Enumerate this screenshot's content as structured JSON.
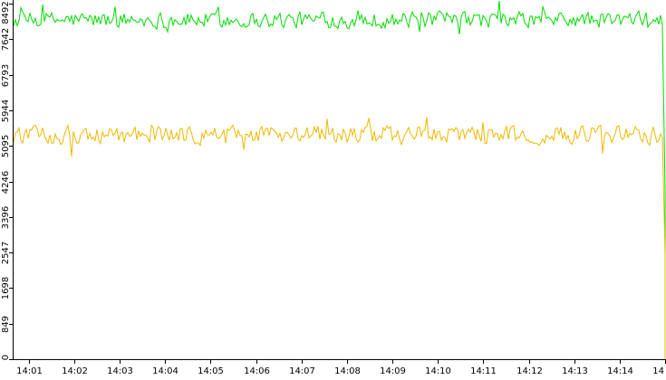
{
  "chart_data": {
    "type": "line",
    "title": "",
    "xlabel": "",
    "ylabel": "",
    "ylim": [
      0,
      8492
    ],
    "y_ticks": [
      0,
      849,
      1698,
      2547,
      3396,
      4246,
      5095,
      5944,
      6793,
      7642,
      8492
    ],
    "y_tick_labels": [
      "0",
      "849",
      "1698",
      "2547",
      "3396",
      "4246",
      "5095",
      "5944",
      "6793",
      "7642",
      "8492"
    ],
    "x_ticks": [
      "14:01",
      "14:02",
      "14:03",
      "14:04",
      "14:05",
      "14:06",
      "14:07",
      "14:08",
      "14:09",
      "14:10",
      "14:11",
      "14:12",
      "14:13",
      "14:14",
      "14"
    ],
    "x_start_label": "14:00:40",
    "x_end_label": "14:15:00",
    "grid": false,
    "legend": "none",
    "series": [
      {
        "color": "#00dd00",
        "mean": 8100,
        "spread": 180,
        "last_values": [
          4000,
          2500
        ]
      },
      {
        "color": "#f0b800",
        "mean": 5350,
        "spread": 200,
        "last_values": [
          2500,
          0
        ]
      }
    ]
  }
}
